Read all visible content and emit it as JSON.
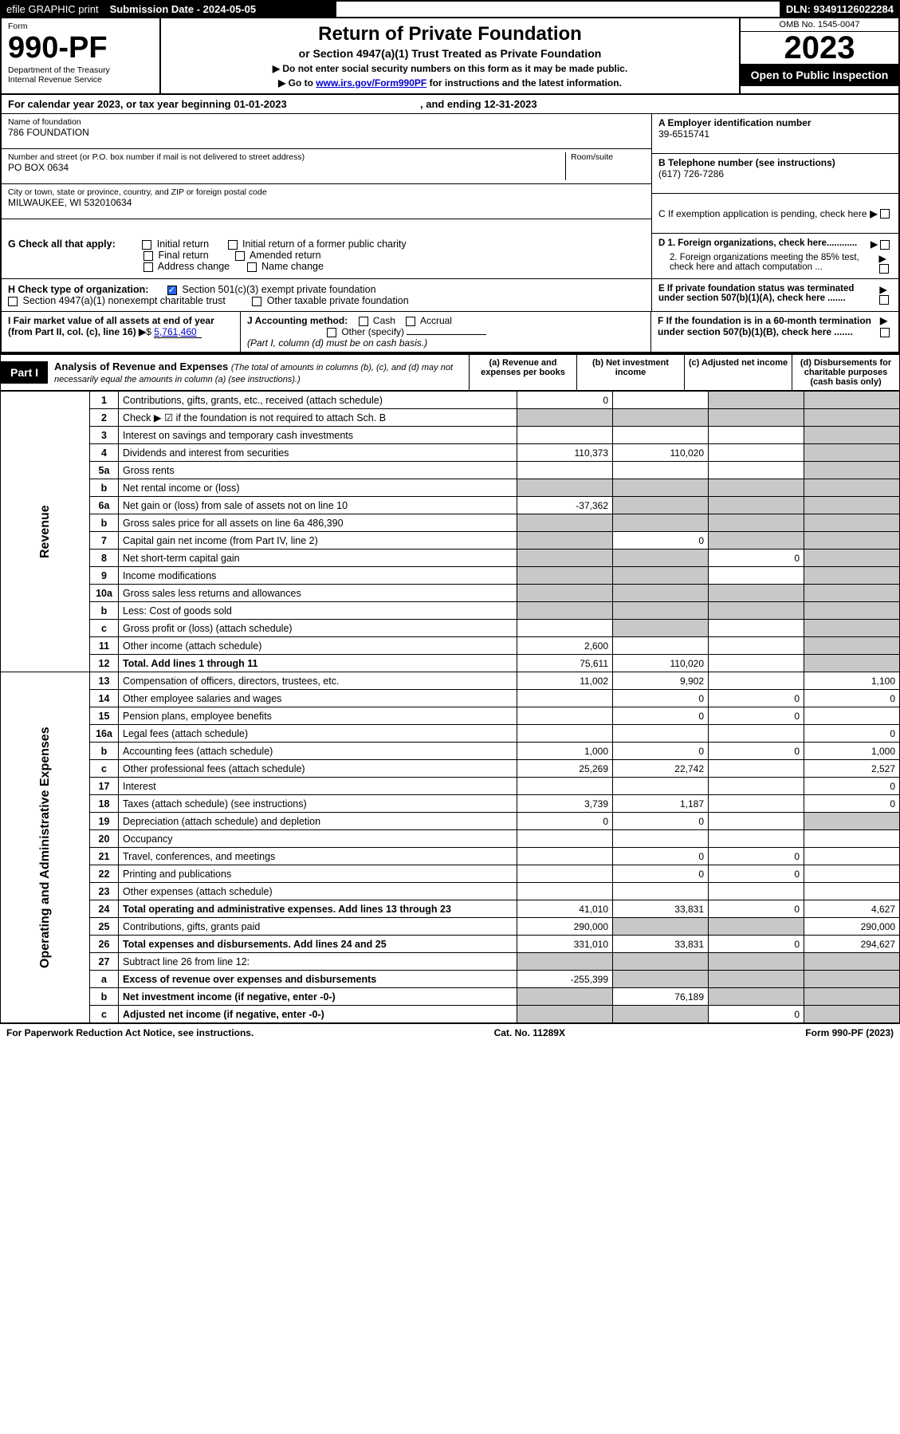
{
  "topbar": {
    "efile": "efile GRAPHIC print",
    "submission_label": "Submission Date - 2024-05-05",
    "dln_label": "DLN: 93491126022284"
  },
  "header": {
    "form_label": "Form",
    "form_number": "990-PF",
    "dept": "Department of the Treasury",
    "irs": "Internal Revenue Service",
    "title": "Return of Private Foundation",
    "subtitle": "or Section 4947(a)(1) Trust Treated as Private Foundation",
    "note1": "▶ Do not enter social security numbers on this form as it may be made public.",
    "note2_prefix": "▶ Go to ",
    "note2_link": "www.irs.gov/Form990PF",
    "note2_suffix": " for instructions and the latest information.",
    "omb": "OMB No. 1545-0047",
    "year": "2023",
    "open_public": "Open to Public Inspection"
  },
  "cal": {
    "text": "For calendar year 2023, or tax year beginning 01-01-2023",
    "ending": ", and ending 12-31-2023"
  },
  "info": {
    "name_label": "Name of foundation",
    "name": "786 FOUNDATION",
    "addr_label": "Number and street (or P.O. box number if mail is not delivered to street address)",
    "room_label": "Room/suite",
    "addr": "PO BOX 0634",
    "city_label": "City or town, state or province, country, and ZIP or foreign postal code",
    "city": "MILWAUKEE, WI  532010634",
    "ein_label": "A Employer identification number",
    "ein": "39-6515741",
    "phone_label": "B Telephone number (see instructions)",
    "phone": "(617) 726-7286",
    "c_label": "C If exemption application is pending, check here",
    "d1": "D 1. Foreign organizations, check here............",
    "d2": "2. Foreign organizations meeting the 85% test, check here and attach computation ...",
    "e": "E If private foundation status was terminated under section 507(b)(1)(A), check here .......",
    "f": "F If the foundation is in a 60-month termination under section 507(b)(1)(B), check here ......."
  },
  "checks": {
    "g_label": "G Check all that apply:",
    "g_opts": [
      "Initial return",
      "Initial return of a former public charity",
      "Final return",
      "Amended return",
      "Address change",
      "Name change"
    ],
    "h_label": "H Check type of organization:",
    "h_501c3": "Section 501(c)(3) exempt private foundation",
    "h_4947": "Section 4947(a)(1) nonexempt charitable trust",
    "h_other": "Other taxable private foundation",
    "i_label": "I Fair market value of all assets at end of year (from Part II, col. (c), line 16)",
    "i_value": "5,761,460",
    "j_label": "J Accounting method:",
    "j_opts": [
      "Cash",
      "Accrual"
    ],
    "j_other": "Other (specify)",
    "j_note": "(Part I, column (d) must be on cash basis.)"
  },
  "part1": {
    "label": "Part I",
    "title": "Analysis of Revenue and Expenses",
    "title_note": "(The total of amounts in columns (b), (c), and (d) may not necessarily equal the amounts in column (a) (see instructions).)",
    "col_a": "(a) Revenue and expenses per books",
    "col_b": "(b) Net investment income",
    "col_c": "(c) Adjusted net income",
    "col_d": "(d) Disbursements for charitable purposes (cash basis only)"
  },
  "sides": {
    "revenue": "Revenue",
    "expenses": "Operating and Administrative Expenses"
  },
  "rows": [
    {
      "n": "1",
      "d": "Contributions, gifts, grants, etc., received (attach schedule)",
      "a": "0",
      "b": "",
      "c": "g",
      "dcol": "g"
    },
    {
      "n": "2",
      "d": "Check ▶ ☑ if the foundation is not required to attach Sch. B",
      "dots": true,
      "a": "g",
      "b": "g",
      "c": "g",
      "dcol": "g"
    },
    {
      "n": "3",
      "d": "Interest on savings and temporary cash investments",
      "a": "",
      "b": "",
      "c": "",
      "dcol": "g"
    },
    {
      "n": "4",
      "d": "Dividends and interest from securities",
      "dots": true,
      "a": "110,373",
      "b": "110,020",
      "c": "",
      "dcol": "g"
    },
    {
      "n": "5a",
      "d": "Gross rents",
      "dots": true,
      "a": "",
      "b": "",
      "c": "",
      "dcol": "g"
    },
    {
      "n": "b",
      "d": "Net rental income or (loss)",
      "a": "g",
      "b": "g",
      "c": "g",
      "dcol": "g"
    },
    {
      "n": "6a",
      "d": "Net gain or (loss) from sale of assets not on line 10",
      "a": "-37,362",
      "b": "g",
      "c": "g",
      "dcol": "g"
    },
    {
      "n": "b",
      "d": "Gross sales price for all assets on line 6a                486,390",
      "a": "g",
      "b": "g",
      "c": "g",
      "dcol": "g"
    },
    {
      "n": "7",
      "d": "Capital gain net income (from Part IV, line 2)",
      "dots": true,
      "a": "g",
      "b": "0",
      "c": "g",
      "dcol": "g"
    },
    {
      "n": "8",
      "d": "Net short-term capital gain",
      "dots": true,
      "a": "g",
      "b": "g",
      "c": "0",
      "dcol": "g"
    },
    {
      "n": "9",
      "d": "Income modifications",
      "dots": true,
      "a": "g",
      "b": "g",
      "c": "",
      "dcol": "g"
    },
    {
      "n": "10a",
      "d": "Gross sales less returns and allowances",
      "a": "g",
      "b": "g",
      "c": "g",
      "dcol": "g"
    },
    {
      "n": "b",
      "d": "Less: Cost of goods sold",
      "dots": true,
      "a": "g",
      "b": "g",
      "c": "g",
      "dcol": "g"
    },
    {
      "n": "c",
      "d": "Gross profit or (loss) (attach schedule)",
      "dots": true,
      "a": "",
      "b": "g",
      "c": "",
      "dcol": "g"
    },
    {
      "n": "11",
      "d": "Other income (attach schedule)",
      "dots": true,
      "a": "2,600",
      "b": "",
      "c": "",
      "dcol": "g"
    },
    {
      "n": "12",
      "d": "Total. Add lines 1 through 11",
      "dots": true,
      "bold": true,
      "a": "75,611",
      "b": "110,020",
      "c": "",
      "dcol": "g"
    },
    {
      "n": "13",
      "d": "Compensation of officers, directors, trustees, etc.",
      "a": "11,002",
      "b": "9,902",
      "c": "",
      "dcol": "1,100"
    },
    {
      "n": "14",
      "d": "Other employee salaries and wages",
      "dots": true,
      "a": "",
      "b": "0",
      "c": "0",
      "dcol": "0"
    },
    {
      "n": "15",
      "d": "Pension plans, employee benefits",
      "dots": true,
      "a": "",
      "b": "0",
      "c": "0",
      "dcol": ""
    },
    {
      "n": "16a",
      "d": "Legal fees (attach schedule)",
      "dots": true,
      "a": "",
      "b": "",
      "c": "",
      "dcol": "0"
    },
    {
      "n": "b",
      "d": "Accounting fees (attach schedule)",
      "dots": true,
      "a": "1,000",
      "b": "0",
      "c": "0",
      "dcol": "1,000"
    },
    {
      "n": "c",
      "d": "Other professional fees (attach schedule)",
      "dots": true,
      "a": "25,269",
      "b": "22,742",
      "c": "",
      "dcol": "2,527"
    },
    {
      "n": "17",
      "d": "Interest",
      "dots": true,
      "a": "",
      "b": "",
      "c": "",
      "dcol": "0"
    },
    {
      "n": "18",
      "d": "Taxes (attach schedule) (see instructions)",
      "dots": true,
      "a": "3,739",
      "b": "1,187",
      "c": "",
      "dcol": "0"
    },
    {
      "n": "19",
      "d": "Depreciation (attach schedule) and depletion",
      "dots": true,
      "a": "0",
      "b": "0",
      "c": "",
      "dcol": "g"
    },
    {
      "n": "20",
      "d": "Occupancy",
      "dots": true,
      "a": "",
      "b": "",
      "c": "",
      "dcol": ""
    },
    {
      "n": "21",
      "d": "Travel, conferences, and meetings",
      "dots": true,
      "a": "",
      "b": "0",
      "c": "0",
      "dcol": ""
    },
    {
      "n": "22",
      "d": "Printing and publications",
      "dots": true,
      "a": "",
      "b": "0",
      "c": "0",
      "dcol": ""
    },
    {
      "n": "23",
      "d": "Other expenses (attach schedule)",
      "dots": true,
      "a": "",
      "b": "",
      "c": "",
      "dcol": ""
    },
    {
      "n": "24",
      "d": "Total operating and administrative expenses. Add lines 13 through 23",
      "dots": true,
      "bold": true,
      "a": "41,010",
      "b": "33,831",
      "c": "0",
      "dcol": "4,627"
    },
    {
      "n": "25",
      "d": "Contributions, gifts, grants paid",
      "dots": true,
      "a": "290,000",
      "b": "g",
      "c": "g",
      "dcol": "290,000"
    },
    {
      "n": "26",
      "d": "Total expenses and disbursements. Add lines 24 and 25",
      "bold": true,
      "a": "331,010",
      "b": "33,831",
      "c": "0",
      "dcol": "294,627"
    },
    {
      "n": "27",
      "d": "Subtract line 26 from line 12:",
      "a": "g",
      "b": "g",
      "c": "g",
      "dcol": "g"
    },
    {
      "n": "a",
      "d": "Excess of revenue over expenses and disbursements",
      "bold": true,
      "a": "-255,399",
      "b": "g",
      "c": "g",
      "dcol": "g"
    },
    {
      "n": "b",
      "d": "Net investment income (if negative, enter -0-)",
      "bold": true,
      "a": "g",
      "b": "76,189",
      "c": "g",
      "dcol": "g"
    },
    {
      "n": "c",
      "d": "Adjusted net income (if negative, enter -0-)",
      "dots": true,
      "bold": true,
      "a": "g",
      "b": "g",
      "c": "0",
      "dcol": "g"
    }
  ],
  "footer": {
    "left": "For Paperwork Reduction Act Notice, see instructions.",
    "mid": "Cat. No. 11289X",
    "right": "Form 990-PF (2023)"
  },
  "colors": {
    "grey_cell": "#c8c8c8",
    "link": "#0000cc",
    "check_blue": "#2563eb"
  }
}
